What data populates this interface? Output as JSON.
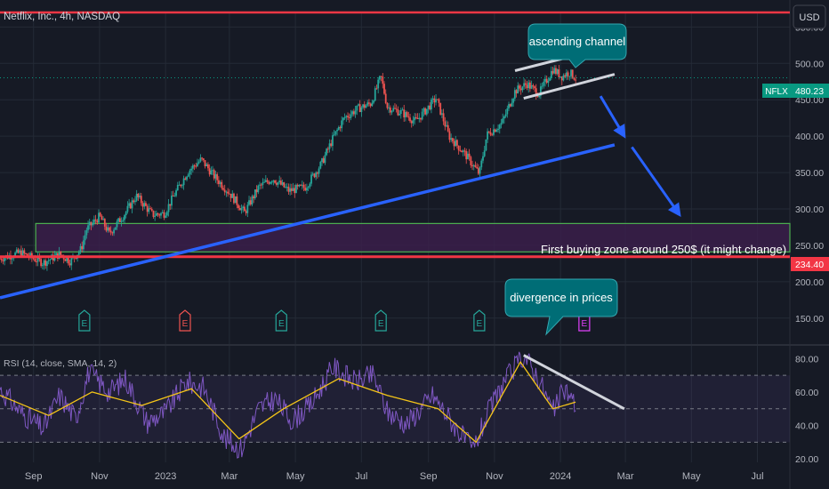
{
  "header": {
    "symbol_title": "Netflix, Inc., 4h, NASDAQ",
    "currency": "USD"
  },
  "colors": {
    "background": "#161a25",
    "grid": "#242a36",
    "axis_text": "#b2b5be",
    "candle_up": "#26a69a",
    "candle_down": "#ef5350",
    "trendline": "#2962ff",
    "resistance": "#f23645",
    "buy_zone_border": "#4caf50",
    "buy_zone_fill": "#3a1f4a",
    "callout_fill": "#006d76",
    "rsi_line": "#7e57c2",
    "rsi_ma": "#f5c518",
    "price_badge": "#089981",
    "support_badge": "#f23645"
  },
  "chart_data": [
    {
      "type": "candlestick",
      "title": "Netflix, Inc., 4h, NASDAQ",
      "x_ticks": [
        "Sep",
        "Nov",
        "2023",
        "Mar",
        "May",
        "Jul",
        "Sep",
        "Nov",
        "2024",
        "Mar",
        "May",
        "Jul"
      ],
      "y_ticks": [
        200,
        250,
        300,
        350,
        400,
        450,
        500,
        550
      ],
      "y_tick_labels": [
        "200.00",
        "250.00",
        "300.00",
        "350.00",
        "400.00",
        "450.00",
        "500.00",
        "550.00"
      ],
      "extra_y_tick": {
        "value": 150,
        "label": "150.00"
      },
      "ylim": [
        118,
        570
      ],
      "x_range": [
        "2022-08-01",
        "2024-07-31"
      ],
      "price_path": [
        {
          "date": "2022-08-01",
          "price": 232
        },
        {
          "date": "2022-08-20",
          "price": 240
        },
        {
          "date": "2022-09-10",
          "price": 226
        },
        {
          "date": "2022-09-25",
          "price": 238
        },
        {
          "date": "2022-10-05",
          "price": 228
        },
        {
          "date": "2022-10-15",
          "price": 245
        },
        {
          "date": "2022-10-20",
          "price": 272
        },
        {
          "date": "2022-11-01",
          "price": 290
        },
        {
          "date": "2022-11-10",
          "price": 266
        },
        {
          "date": "2022-11-25",
          "price": 295
        },
        {
          "date": "2022-12-05",
          "price": 318
        },
        {
          "date": "2022-12-20",
          "price": 292
        },
        {
          "date": "2022-12-31",
          "price": 294
        },
        {
          "date": "2023-01-10",
          "price": 322
        },
        {
          "date": "2023-01-22",
          "price": 352
        },
        {
          "date": "2023-02-03",
          "price": 368
        },
        {
          "date": "2023-02-15",
          "price": 345
        },
        {
          "date": "2023-03-01",
          "price": 322
        },
        {
          "date": "2023-03-15",
          "price": 295
        },
        {
          "date": "2023-03-28",
          "price": 330
        },
        {
          "date": "2023-04-10",
          "price": 342
        },
        {
          "date": "2023-04-25",
          "price": 325
        },
        {
          "date": "2023-05-10",
          "price": 330
        },
        {
          "date": "2023-05-25",
          "price": 362
        },
        {
          "date": "2023-06-05",
          "price": 398
        },
        {
          "date": "2023-06-15",
          "price": 425
        },
        {
          "date": "2023-06-28",
          "price": 438
        },
        {
          "date": "2023-07-10",
          "price": 445
        },
        {
          "date": "2023-07-19",
          "price": 482
        },
        {
          "date": "2023-07-25",
          "price": 440
        },
        {
          "date": "2023-08-08",
          "price": 432
        },
        {
          "date": "2023-08-20",
          "price": 420
        },
        {
          "date": "2023-09-01",
          "price": 440
        },
        {
          "date": "2023-09-08",
          "price": 452
        },
        {
          "date": "2023-09-20",
          "price": 400
        },
        {
          "date": "2023-10-05",
          "price": 375
        },
        {
          "date": "2023-10-18",
          "price": 348
        },
        {
          "date": "2023-10-25",
          "price": 402
        },
        {
          "date": "2023-11-08",
          "price": 418
        },
        {
          "date": "2023-11-20",
          "price": 462
        },
        {
          "date": "2023-12-01",
          "price": 472
        },
        {
          "date": "2023-12-12",
          "price": 458
        },
        {
          "date": "2023-12-25",
          "price": 492
        },
        {
          "date": "2024-01-02",
          "price": 482
        },
        {
          "date": "2024-01-09",
          "price": 488
        },
        {
          "date": "2024-01-15",
          "price": 480
        }
      ],
      "last_price": {
        "value": 480.23,
        "label": "480.23",
        "symbol": "NFLX"
      },
      "levels": {
        "resistance": 570,
        "support": 234.4,
        "support_label": "234.40",
        "buy_zone": [
          241,
          280
        ]
      },
      "trendline": {
        "from": {
          "date": "2022-08-01",
          "price": 178
        },
        "to": {
          "date": "2024-02-20",
          "price": 388
        }
      },
      "ascending_channel": {
        "upper": {
          "from": {
            "date": "2023-11-20",
            "price": 490
          },
          "to": {
            "date": "2024-01-12",
            "price": 510
          }
        },
        "lower": {
          "from": {
            "date": "2023-11-28",
            "price": 452
          },
          "to": {
            "date": "2024-02-20",
            "price": 485
          }
        }
      },
      "earnings_markers": [
        {
          "date": "2022-10-18",
          "kind": "past"
        },
        {
          "date": "2023-01-19",
          "kind": "past-negative"
        },
        {
          "date": "2023-04-18",
          "kind": "past"
        },
        {
          "date": "2023-07-19",
          "kind": "past"
        },
        {
          "date": "2023-10-18",
          "kind": "past"
        },
        {
          "date": "2024-01-23",
          "kind": "upcoming"
        }
      ],
      "arrows": [
        {
          "from": {
            "date": "2024-02-07",
            "price": 455
          },
          "to": {
            "date": "2024-02-29",
            "price": 400
          }
        },
        {
          "from": {
            "date": "2024-03-07",
            "price": 385
          },
          "to": {
            "date": "2024-04-20",
            "price": 292
          }
        }
      ],
      "annotations": {
        "channel": "ascending channel",
        "divergence": "divergence in prices",
        "buy_zone": "First buying zone around 250$ (it might change)",
        "earnings_letter": "E"
      }
    },
    {
      "type": "line",
      "title": "RSI (14, close, SMA, 14, 2)",
      "y_ticks": [
        20,
        40,
        60,
        80
      ],
      "y_tick_labels": [
        "20.00",
        "40.00",
        "60.00",
        "80.00"
      ],
      "ylim": [
        18,
        86
      ],
      "band": [
        30,
        70
      ],
      "midline": 50,
      "series": [
        {
          "name": "RSI",
          "values": [
            {
              "date": "2022-08-01",
              "value": 62
            },
            {
              "date": "2022-08-20",
              "value": 48
            },
            {
              "date": "2022-09-10",
              "value": 38
            },
            {
              "date": "2022-09-25",
              "value": 58
            },
            {
              "date": "2022-10-10",
              "value": 44
            },
            {
              "date": "2022-10-22",
              "value": 72
            },
            {
              "date": "2022-11-10",
              "value": 60
            },
            {
              "date": "2022-11-25",
              "value": 68
            },
            {
              "date": "2022-12-15",
              "value": 42
            },
            {
              "date": "2023-01-01",
              "value": 48
            },
            {
              "date": "2023-01-20",
              "value": 66
            },
            {
              "date": "2023-02-05",
              "value": 63
            },
            {
              "date": "2023-02-25",
              "value": 32
            },
            {
              "date": "2023-03-12",
              "value": 26
            },
            {
              "date": "2023-03-28",
              "value": 50
            },
            {
              "date": "2023-04-12",
              "value": 56
            },
            {
              "date": "2023-04-28",
              "value": 43
            },
            {
              "date": "2023-05-15",
              "value": 52
            },
            {
              "date": "2023-06-05",
              "value": 75
            },
            {
              "date": "2023-06-25",
              "value": 66
            },
            {
              "date": "2023-07-12",
              "value": 70
            },
            {
              "date": "2023-07-25",
              "value": 48
            },
            {
              "date": "2023-08-12",
              "value": 41
            },
            {
              "date": "2023-09-05",
              "value": 58
            },
            {
              "date": "2023-09-25",
              "value": 40
            },
            {
              "date": "2023-10-12",
              "value": 25
            },
            {
              "date": "2023-10-25",
              "value": 46
            },
            {
              "date": "2023-11-10",
              "value": 66
            },
            {
              "date": "2023-11-28",
              "value": 82
            },
            {
              "date": "2023-12-12",
              "value": 68
            },
            {
              "date": "2023-12-25",
              "value": 48
            },
            {
              "date": "2024-01-05",
              "value": 62
            },
            {
              "date": "2024-01-15",
              "value": 52
            }
          ]
        },
        {
          "name": "SMA",
          "values": [
            {
              "date": "2022-08-01",
              "value": 58
            },
            {
              "date": "2022-09-15",
              "value": 46
            },
            {
              "date": "2022-10-25",
              "value": 60
            },
            {
              "date": "2022-12-10",
              "value": 52
            },
            {
              "date": "2023-01-25",
              "value": 62
            },
            {
              "date": "2023-03-10",
              "value": 32
            },
            {
              "date": "2023-04-20",
              "value": 50
            },
            {
              "date": "2023-06-10",
              "value": 68
            },
            {
              "date": "2023-07-25",
              "value": 58
            },
            {
              "date": "2023-09-10",
              "value": 50
            },
            {
              "date": "2023-10-15",
              "value": 30
            },
            {
              "date": "2023-11-25",
              "value": 78
            },
            {
              "date": "2023-12-25",
              "value": 50
            },
            {
              "date": "2024-01-15",
              "value": 54
            }
          ]
        }
      ],
      "divergence_line": {
        "from": {
          "date": "2023-11-28",
          "value": 82
        },
        "to": {
          "date": "2024-02-29",
          "value": 50
        }
      }
    }
  ]
}
